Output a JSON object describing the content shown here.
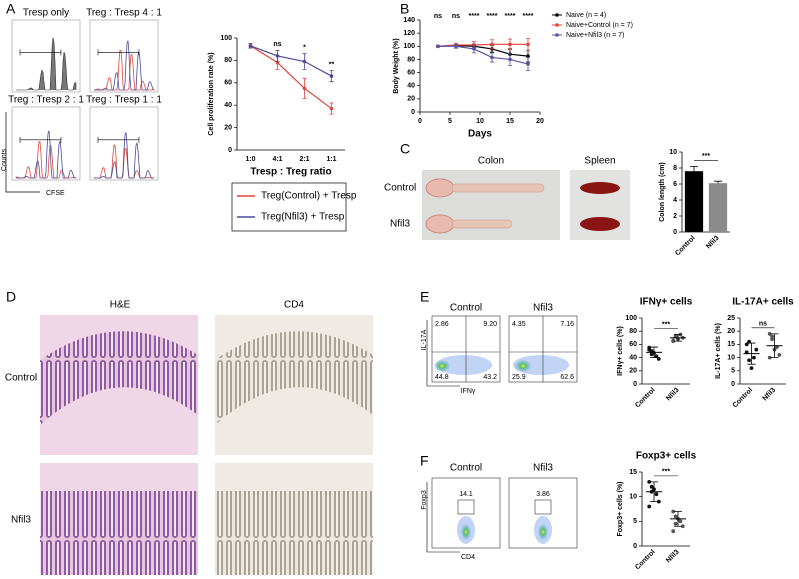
{
  "panel_labels": [
    "A",
    "B",
    "C",
    "D",
    "E",
    "F"
  ],
  "histograms": {
    "titles": [
      "Tresp only",
      "Treg : Tresp  4 : 1",
      "Treg : Tresp  2 : 1",
      "Treg : Tresp  1 : 1"
    ],
    "ylabel": "Counts",
    "xlabel": "CFSE"
  },
  "colon_images": {
    "columns": [
      "Colon",
      "Spleen"
    ],
    "rows": [
      "Control",
      "Nfil3"
    ]
  },
  "histology": {
    "columns": [
      "H&E",
      "CD4"
    ],
    "rows": [
      "Control",
      "Nfil3"
    ]
  },
  "flow_E": {
    "columns": [
      "Control",
      "Nfil3"
    ],
    "ylabel": "IL-17A",
    "xlabel": "IFNγ",
    "quadrants": [
      [
        "2.86",
        "9.20",
        "44.8",
        "43.2"
      ],
      [
        "4.35",
        "7.16",
        "25.9",
        "62.6"
      ]
    ]
  },
  "flow_F": {
    "columns": [
      "Control",
      "Nfil3"
    ],
    "ylabel": "Foxp3",
    "xlabel": "CD4",
    "gates": [
      "14.1",
      "3.86"
    ]
  },
  "chart_data": [
    {
      "type": "line",
      "ylabel": "Cell proliferation rate (%)",
      "xlabel": "Tresp : Treg ratio",
      "categories": [
        "1:0",
        "4:1",
        "2:1",
        "1:1"
      ],
      "ylim": [
        0,
        100
      ],
      "yticks": [
        0,
        20,
        40,
        60,
        80,
        100
      ],
      "annotations": [
        null,
        "ns",
        "*",
        "**"
      ],
      "legend": "bottom",
      "series": [
        {
          "name": "Treg(Control) + Tresp",
          "color": "#e0473f",
          "values": [
            93,
            78,
            55,
            37
          ],
          "errors": [
            2,
            6,
            9,
            5
          ]
        },
        {
          "name": "Treg(Nfil3) + Tresp",
          "color": "#4b4b9c",
          "values": [
            93,
            84,
            79,
            66
          ],
          "errors": [
            2,
            5,
            7,
            5
          ]
        }
      ]
    },
    {
      "type": "line",
      "ylabel": "Body Weight (%)",
      "xlabel": "Days",
      "x": [
        3,
        6,
        9,
        12,
        15,
        18
      ],
      "xlim": [
        0,
        20
      ],
      "xticks": [
        0,
        5,
        10,
        15,
        20
      ],
      "ylim": [
        0,
        140
      ],
      "yticks": [
        0,
        20,
        40,
        60,
        80,
        100,
        120,
        140
      ],
      "annotations": [
        "ns",
        "ns",
        "****",
        "****",
        "****",
        "****"
      ],
      "legend": "right",
      "series": [
        {
          "name": "Naive (n = 4)",
          "color": "#000000",
          "values": [
            100,
            101,
            100,
            96,
            88,
            85
          ],
          "errors": [
            1,
            2,
            3,
            5,
            8,
            9
          ]
        },
        {
          "name": "Naive+Control (n = 7)",
          "color": "#e8433a",
          "values": [
            100,
            102,
            102,
            103,
            103,
            103
          ],
          "errors": [
            1,
            2,
            5,
            7,
            8,
            9
          ]
        },
        {
          "name": "Naive+Nfil3 (n = 7)",
          "color": "#5a55a8",
          "values": [
            100,
            100,
            96,
            83,
            80,
            73
          ],
          "errors": [
            1,
            3,
            6,
            7,
            9,
            10
          ]
        }
      ]
    },
    {
      "type": "bar",
      "ylabel": "Colon length (cm)",
      "categories": [
        "Control",
        "Nfil3"
      ],
      "values": [
        7.6,
        6.1
      ],
      "errors": [
        0.6,
        0.25
      ],
      "colors": [
        "#000000",
        "#8a8a8a"
      ],
      "ylim": [
        0,
        10
      ],
      "yticks": [
        0,
        2,
        4,
        6,
        8,
        10
      ],
      "annotation": "***"
    },
    {
      "type": "dot",
      "title": "IFNγ+ cells",
      "ylabel": "IFNγ+ cells (%)",
      "categories": [
        "Control",
        "Nfil3"
      ],
      "points": [
        [
          55,
          50,
          47,
          42,
          38,
          52,
          45
        ],
        [
          65,
          72,
          68,
          75,
          70,
          66,
          73
        ]
      ],
      "means": [
        48,
        70
      ],
      "errors": [
        8,
        5
      ],
      "ylim": [
        0,
        100
      ],
      "yticks": [
        0,
        20,
        40,
        60,
        80,
        100
      ],
      "annotation": "***"
    },
    {
      "type": "dot",
      "title": "IL-17A+ cells",
      "ylabel": "IL-17A+ cells (%)",
      "categories": [
        "Control",
        "Nfil3"
      ],
      "points": [
        [
          15,
          16,
          6,
          10,
          13,
          12,
          9
        ],
        [
          19,
          17,
          13,
          14,
          11,
          10,
          18
        ]
      ],
      "means": [
        11.5,
        14.5
      ],
      "errors": [
        4,
        4.5
      ],
      "ylim": [
        0,
        25
      ],
      "yticks": [
        0,
        5,
        10,
        15,
        20,
        25
      ],
      "annotation": "ns"
    },
    {
      "type": "dot",
      "title": "Foxp3+ cells",
      "ylabel": "Foxp3+ cells (%)",
      "categories": [
        "Control",
        "Nfil3"
      ],
      "points": [
        [
          13,
          12,
          11.5,
          10.5,
          9,
          8,
          11
        ],
        [
          7,
          6,
          5.5,
          5,
          4,
          3,
          4.5
        ]
      ],
      "means": [
        11,
        5.5
      ],
      "errors": [
        2,
        1.5
      ],
      "ylim": [
        0,
        15
      ],
      "yticks": [
        0,
        5,
        10,
        15
      ],
      "annotation": "***"
    }
  ]
}
